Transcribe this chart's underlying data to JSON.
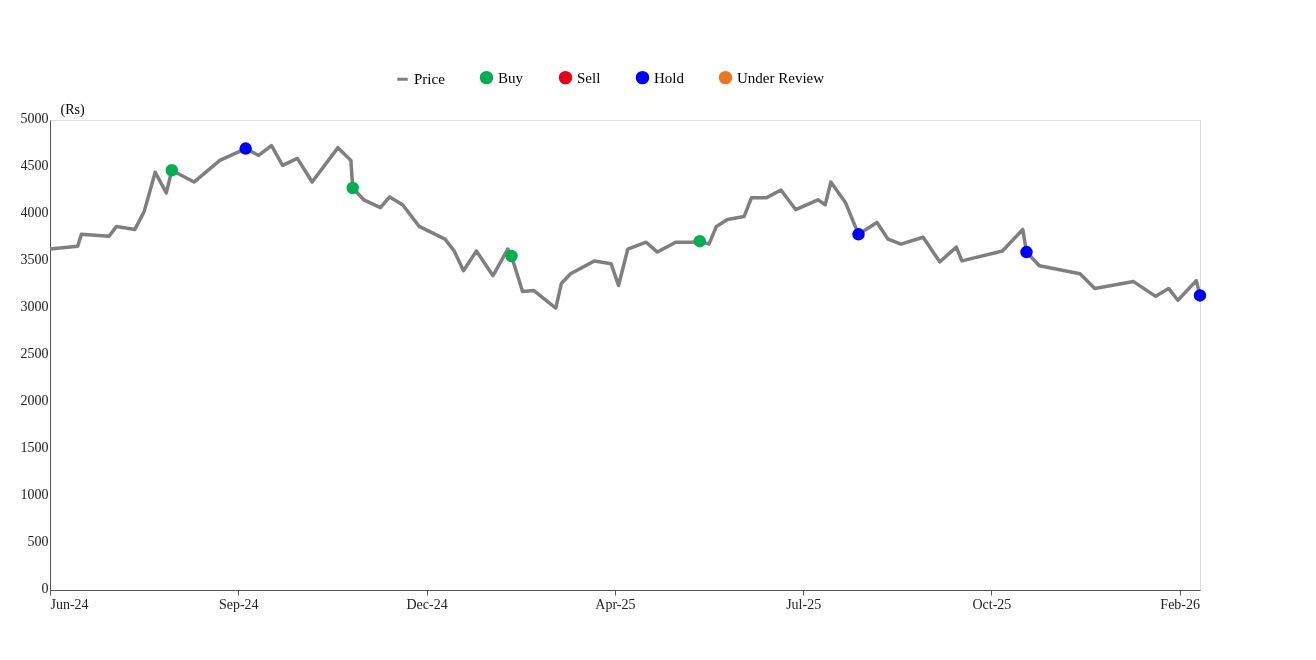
{
  "chart_data": {
    "type": "line",
    "ylabel": "(Rs)",
    "xlim": [
      "2024-06-05",
      "2026-02-18"
    ],
    "xticks": [
      {
        "value": "2024-06-05",
        "label": "Jun-24"
      },
      {
        "value": "2024-09-15",
        "label": "Sep-24"
      },
      {
        "value": "2024-12-26",
        "label": "Dec-24"
      },
      {
        "value": "2025-04-07",
        "label": "Apr-25"
      },
      {
        "value": "2025-07-18",
        "label": "Jul-25"
      },
      {
        "value": "2025-10-28",
        "label": "Oct-25"
      },
      {
        "value": "2026-02-07",
        "label": "Feb-26"
      }
    ],
    "ylim": [
      0,
      5000
    ],
    "yticks": [
      0,
      500,
      1000,
      1500,
      2000,
      2500,
      3000,
      3500,
      4000,
      4500,
      5000
    ],
    "grid": false,
    "legend": "top",
    "marker": "circle",
    "series": [
      {
        "name": "Price",
        "color": "#7f7f7f",
        "marker": "none",
        "x": [
          "2024-06-05",
          "2024-06-20",
          "2024-06-22",
          "2024-07-07",
          "2024-07-11",
          "2024-07-21",
          "2024-07-26",
          "2024-08-01",
          "2024-08-07",
          "2024-08-10",
          "2024-08-22",
          "2024-09-05",
          "2024-09-19",
          "2024-09-26",
          "2024-10-03",
          "2024-10-09",
          "2024-10-17",
          "2024-10-25",
          "2024-11-08",
          "2024-11-15",
          "2024-11-16",
          "2024-11-22",
          "2024-12-01",
          "2024-12-06",
          "2024-12-13",
          "2024-12-22",
          "2025-01-05",
          "2025-01-10",
          "2025-01-15",
          "2025-01-22",
          "2025-01-31",
          "2025-02-08",
          "2025-02-10",
          "2025-02-16",
          "2025-02-22",
          "2025-03-06",
          "2025-03-09",
          "2025-03-14",
          "2025-03-27",
          "2025-04-05",
          "2025-04-09",
          "2025-04-14",
          "2025-04-24",
          "2025-04-30",
          "2025-05-10",
          "2025-05-19",
          "2025-05-23",
          "2025-05-28",
          "2025-06-01",
          "2025-06-07",
          "2025-06-16",
          "2025-06-20",
          "2025-06-28",
          "2025-07-06",
          "2025-07-14",
          "2025-07-26",
          "2025-07-30",
          "2025-08-02",
          "2025-08-10",
          "2025-08-17",
          "2025-08-27",
          "2025-09-02",
          "2025-09-09",
          "2025-09-21",
          "2025-09-30",
          "2025-10-09",
          "2025-10-12",
          "2025-11-03",
          "2025-11-14",
          "2025-11-16",
          "2025-11-23",
          "2025-12-15",
          "2025-12-23",
          "2026-01-13",
          "2026-01-25",
          "2026-02-01",
          "2026-02-06",
          "2026-02-16",
          "2026-02-18"
        ],
        "values": [
          3627,
          3658,
          3784,
          3763,
          3868,
          3836,
          4025,
          4444,
          4224,
          4465,
          4340,
          4570,
          4696,
          4623,
          4727,
          4518,
          4591,
          4340,
          4706,
          4570,
          4277,
          4151,
          4067,
          4182,
          4099,
          3868,
          3732,
          3606,
          3396,
          3606,
          3344,
          3627,
          3553,
          3176,
          3187,
          2998,
          3260,
          3365,
          3501,
          3470,
          3239,
          3627,
          3700,
          3595,
          3700,
          3700,
          3711,
          3679,
          3868,
          3941,
          3973,
          4172,
          4172,
          4256,
          4046,
          4151,
          4099,
          4340,
          4119,
          3784,
          3910,
          3732,
          3679,
          3753,
          3491,
          3648,
          3501,
          3606,
          3836,
          3595,
          3449,
          3365,
          3208,
          3281,
          3124,
          3208,
          3082,
          3291,
          3134
        ]
      },
      {
        "name": "Buy",
        "type": "scatter",
        "color": "#00b050",
        "x": [
          "2024-08-10",
          "2024-11-16",
          "2025-02-10",
          "2025-05-23"
        ],
        "values": [
          4465,
          4277,
          3553,
          3711
        ]
      },
      {
        "name": "Sell",
        "type": "scatter",
        "color": "#e8001c"
      },
      {
        "name": "Hold",
        "type": "scatter",
        "color": "#0000ff",
        "x": [
          "2024-09-19",
          "2025-08-17",
          "2025-11-16",
          "2026-02-18"
        ],
        "values": [
          4696,
          3784,
          3595,
          3134
        ]
      },
      {
        "name": "Under Review",
        "type": "scatter",
        "color": "#e87722"
      }
    ]
  }
}
